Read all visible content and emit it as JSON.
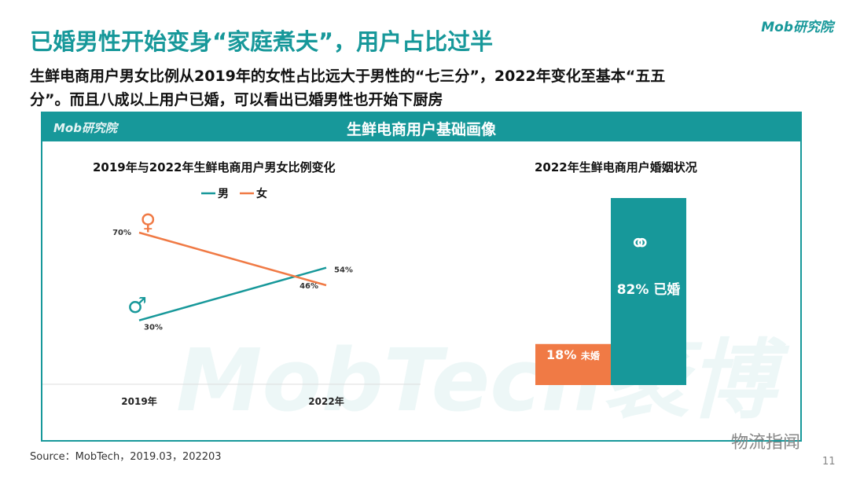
{
  "header": {
    "title": "已婚男性开始变身“家庭煮夫”，用户占比过半",
    "logo": "Mob研究院"
  },
  "subtitle": {
    "line1": "生鲜电商用户男女比例从2019年的女性占比远大于男性的“七三分”，2022年变化至基本“五五",
    "line2": "分”。而且八成以上用户已婚，可以看出已婚男性也开始下厨房"
  },
  "card": {
    "title": "生鲜电商用户基础画像",
    "logo": "Mob研究院",
    "watermark": "MobTech袤博"
  },
  "chart_data": [
    {
      "type": "line",
      "title": "2019年与2022年生鲜电商用户男女比例变化",
      "categories": [
        "2019年",
        "2022年"
      ],
      "series": [
        {
          "name": "男",
          "values": [
            30,
            54
          ],
          "labels": [
            "30%",
            "54%"
          ],
          "color": "#17989a"
        },
        {
          "name": "女",
          "values": [
            70,
            46
          ],
          "labels": [
            "70%",
            "46%"
          ],
          "color": "#f07a45"
        }
      ],
      "legend": "top",
      "grid": false
    },
    {
      "type": "bar",
      "title": "2022年生鲜电商用户婚姻状况",
      "categories": [
        "未婚",
        "已婚"
      ],
      "values": [
        18,
        82
      ],
      "labels": [
        "18%",
        "82%"
      ],
      "colors": [
        "#f07a45",
        "#17989a"
      ]
    }
  ],
  "footer": {
    "source": "Source：MobTech，2019.03，202203",
    "page": "11",
    "wechat": "物流指闻"
  }
}
